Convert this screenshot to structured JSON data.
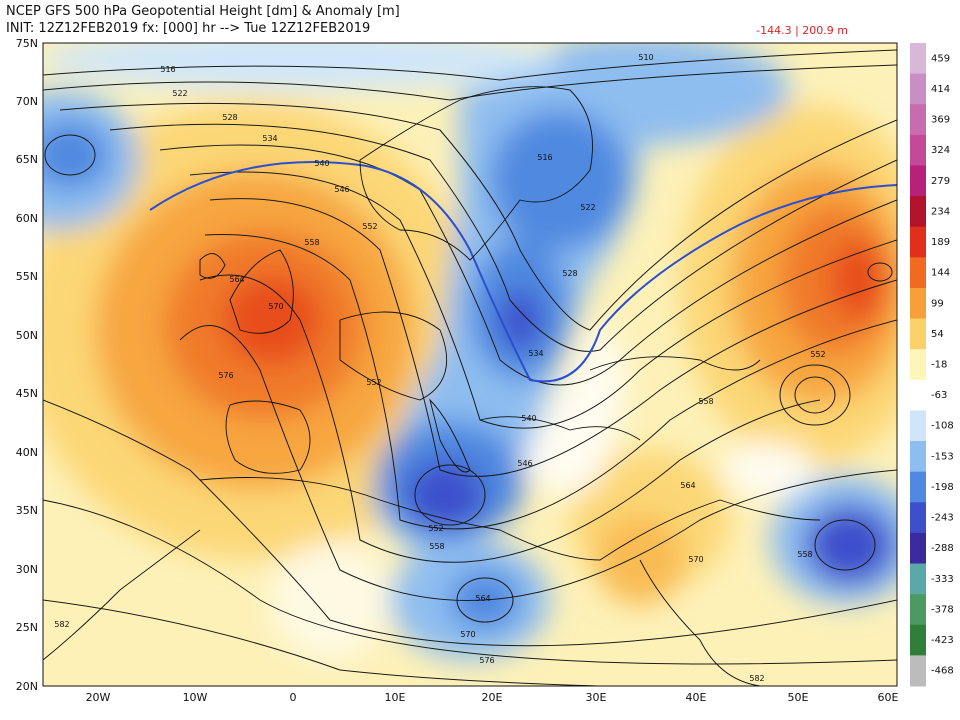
{
  "header": {
    "title_line1": "NCEP GFS 500 hPa Geopotential Height [dm] & Anomaly [m]",
    "title_line2": "INIT: 12Z12FEB2019 fx: [000] hr --> Tue 12Z12FEB2019",
    "range_text": "-144.3 | 200.9 m"
  },
  "axes": {
    "lat_labels": [
      "75N",
      "70N",
      "65N",
      "60N",
      "55N",
      "50N",
      "45N",
      "40N",
      "35N",
      "30N",
      "25N",
      "20N"
    ],
    "lon_labels": [
      "20W",
      "10W",
      "0",
      "10E",
      "20E",
      "30E",
      "40E",
      "50E",
      "60E"
    ]
  },
  "colorbar": {
    "labels": [
      "459",
      "414",
      "369",
      "324",
      "279",
      "234",
      "189",
      "144",
      "99",
      "54",
      "-18",
      "-63",
      "-108",
      "-153",
      "-198",
      "-243",
      "-288",
      "-333",
      "-378",
      "-423",
      "-468"
    ],
    "colors": [
      "#d7b8d9",
      "#c98fc4",
      "#c86cb0",
      "#c24a96",
      "#b7217a",
      "#b1132d",
      "#e0301a",
      "#f06a21",
      "#f7a03a",
      "#fbd269",
      "#fef6b8",
      "#ffffff",
      "#cfe6fa",
      "#8ebdf0",
      "#4f89e0",
      "#3d4fcc",
      "#3b2a9c",
      "#5aa9a8",
      "#4c9a62",
      "#2f7f3a",
      "#bcbcbc"
    ]
  },
  "contour_labels": [
    "516",
    "522",
    "528",
    "534",
    "540",
    "546",
    "552",
    "558",
    "564",
    "570",
    "576",
    "582",
    "510",
    "516",
    "522",
    "528",
    "534",
    "540",
    "546",
    "552",
    "558",
    "564",
    "570",
    "576",
    "582",
    "552",
    "558",
    "564",
    "570",
    "552",
    "558"
  ],
  "palette": {
    "contour_line": "#1a1a1a",
    "contour_540": "#2b4fd0",
    "map_border": "#111111"
  }
}
